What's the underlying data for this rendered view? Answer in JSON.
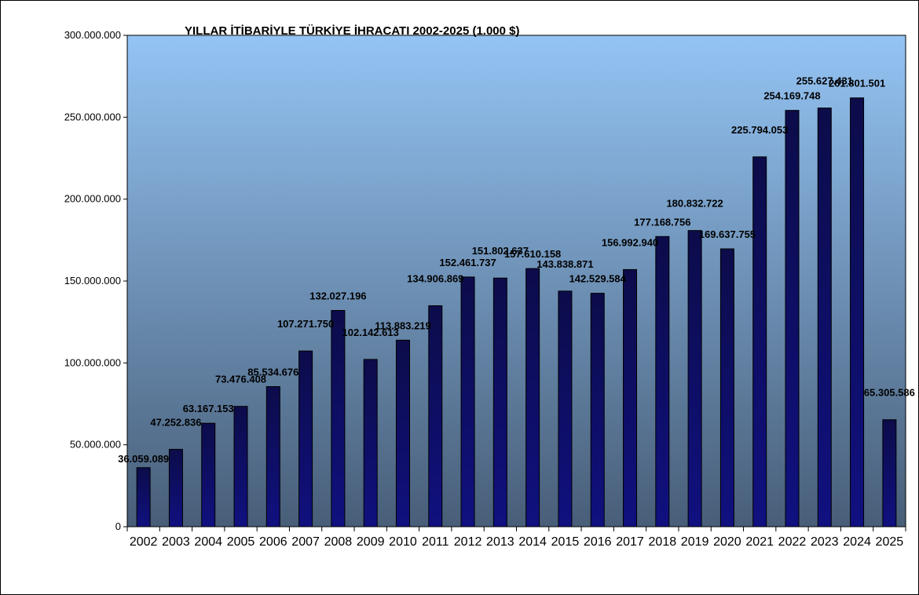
{
  "chart_data": {
    "type": "bar",
    "title": "YILLAR İTİBARİYLE TÜRKİYE İHRACATI 2002-2025 (1.000 $)",
    "xlabel": "",
    "ylabel": "",
    "ylim": [
      0,
      300000000
    ],
    "yticks": [
      0,
      50000000,
      100000000,
      150000000,
      200000000,
      250000000,
      300000000
    ],
    "ytick_labels": [
      "0",
      "50.000.000",
      "100.000.000",
      "150.000.000",
      "200.000.000",
      "250.000.000",
      "300.000.000"
    ],
    "grid": false,
    "legend": "none",
    "categories": [
      "2002",
      "2003",
      "2004",
      "2005",
      "2006",
      "2007",
      "2008",
      "2009",
      "2010",
      "2011",
      "2012",
      "2013",
      "2014",
      "2015",
      "2016",
      "2017",
      "2018",
      "2019",
      "2020",
      "2021",
      "2022",
      "2023",
      "2024",
      "2025"
    ],
    "values": [
      36059089,
      47252836,
      63167153,
      73476408,
      85534676,
      107271750,
      132027196,
      102142613,
      113883219,
      134906869,
      152461737,
      151802637,
      157610158,
      143838871,
      142529584,
      156992940,
      177168756,
      180832722,
      169637755,
      225794053,
      254169748,
      255627431,
      261801501,
      65305586
    ],
    "data_labels": [
      "36.059.089",
      "47.252.836",
      "63.167.153",
      "73.476.408",
      "85.534.676",
      "107.271.750",
      "132.027.196",
      "102.142.613",
      "113.883.219",
      "134.906.869",
      "152.461.737",
      "151.802.637",
      "157.610.158",
      "143.838.871",
      "142.529.584",
      "156.992.940",
      "177.168.756",
      "180.832.722",
      "169.637.755",
      "225.794.053",
      "254.169.748",
      "255.627.431",
      "261.801.501",
      "65.305.586"
    ],
    "colors": {
      "bar_top": "#0c0c4a",
      "bar_bottom": "#101080",
      "plot_top": "#94c4f4",
      "plot_bottom": "#485e78",
      "axis": "#000000"
    }
  }
}
